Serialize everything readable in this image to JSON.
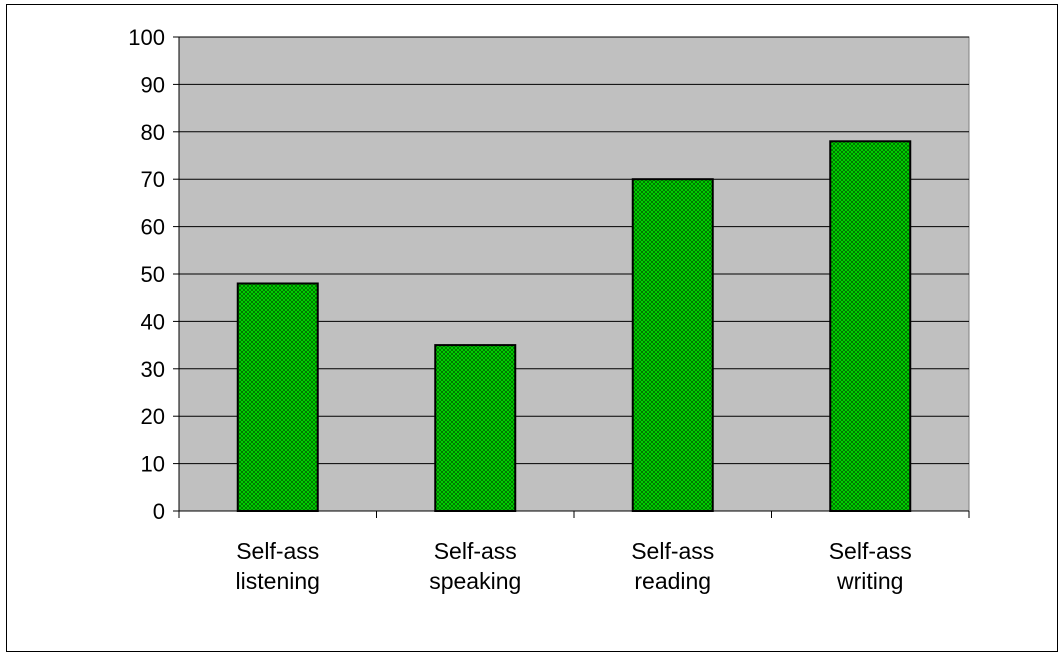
{
  "chart_data": {
    "type": "bar",
    "categories": [
      [
        "Self-ass",
        "listening"
      ],
      [
        "Self-ass",
        "speaking"
      ],
      [
        "Self-ass",
        "reading"
      ],
      [
        "Self-ass",
        "writing"
      ]
    ],
    "values": [
      48,
      35,
      70,
      78
    ],
    "ylim": [
      0,
      100
    ],
    "yticks": [
      0,
      10,
      20,
      30,
      40,
      50,
      60,
      70,
      80,
      90,
      100
    ],
    "grid": true,
    "legend": "none",
    "colors": {
      "plot_background": "#c0c0c0",
      "bar_fill": "#00cc00",
      "bar_pattern": "#007a00",
      "bar_border": "#000000",
      "gridline": "#000000"
    }
  }
}
